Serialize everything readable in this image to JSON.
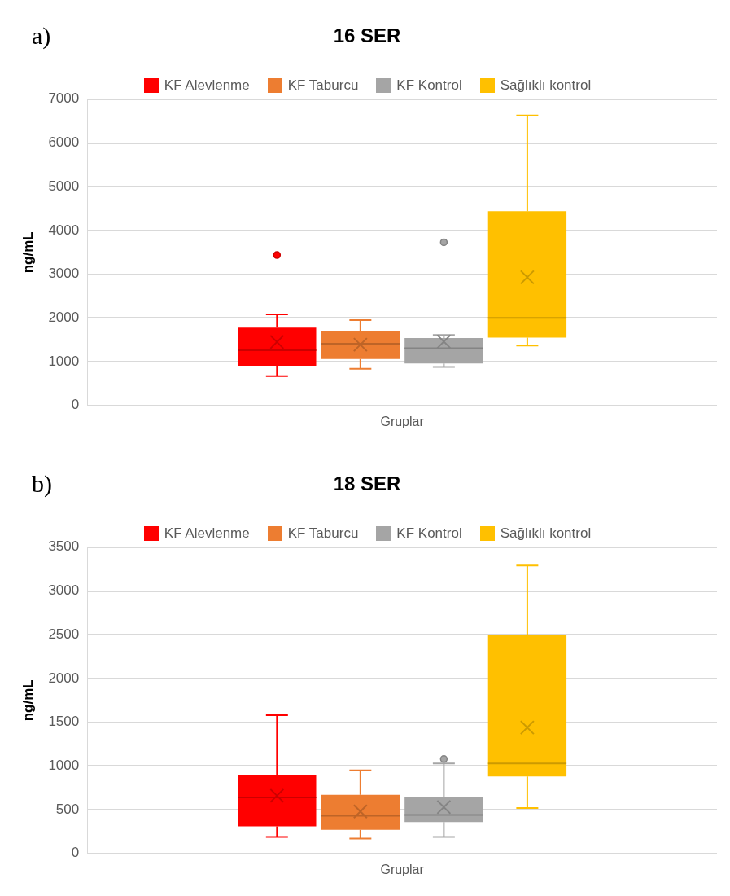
{
  "chart_data": [
    {
      "type": "box",
      "title": "16 SER",
      "annotations": [
        "a)"
      ],
      "ylabel": "ng/mL",
      "categories": [
        "Gruplar"
      ],
      "ylim": [
        0,
        7000
      ],
      "yticks": [
        0,
        1000,
        2000,
        3000,
        4000,
        5000,
        6000,
        7000
      ],
      "grid": "y",
      "legend": "top",
      "series": [
        {
          "name": "KF Alevlenme",
          "color": "#ff0000",
          "boxes": [
            {
              "low": 670,
              "q1": 910,
              "median": 1260,
              "q3": 1780,
              "high": 2080,
              "mean": 1450,
              "outliers": [
                3440
              ]
            }
          ]
        },
        {
          "name": "KF Taburcu",
          "color": "#ed7d31",
          "boxes": [
            {
              "low": 840,
              "q1": 1060,
              "median": 1410,
              "q3": 1710,
              "high": 1950,
              "mean": 1390
            }
          ]
        },
        {
          "name": "KF Kontrol",
          "color": "#a5a5a5",
          "boxes": [
            {
              "low": 880,
              "q1": 960,
              "median": 1310,
              "q3": 1540,
              "high": 1610,
              "mean": 1460,
              "outliers": [
                3730
              ]
            }
          ]
        },
        {
          "name": "Sağlıklı kontrol",
          "color": "#ffc000",
          "boxes": [
            {
              "low": 1370,
              "q1": 1550,
              "median": 2000,
              "q3": 4440,
              "high": 6630,
              "mean": 2930
            }
          ]
        }
      ]
    },
    {
      "type": "box",
      "title": "18 SER",
      "annotations": [
        "b)"
      ],
      "ylabel": "ng/mL",
      "categories": [
        "Gruplar"
      ],
      "ylim": [
        0,
        3500
      ],
      "yticks": [
        0,
        500,
        1000,
        1500,
        2000,
        2500,
        3000,
        3500
      ],
      "grid": "y",
      "legend": "top",
      "series": [
        {
          "name": "KF Alevlenme",
          "color": "#ff0000",
          "boxes": [
            {
              "low": 190,
              "q1": 310,
              "median": 640,
              "q3": 900,
              "high": 1580,
              "mean": 660
            }
          ]
        },
        {
          "name": "KF Taburcu",
          "color": "#ed7d31",
          "boxes": [
            {
              "low": 170,
              "q1": 270,
              "median": 430,
              "q3": 670,
              "high": 950,
              "mean": 480
            }
          ]
        },
        {
          "name": "KF Kontrol",
          "color": "#a5a5a5",
          "boxes": [
            {
              "low": 190,
              "q1": 360,
              "median": 440,
              "q3": 640,
              "high": 1030,
              "mean": 530,
              "outliers": [
                1080
              ]
            }
          ]
        },
        {
          "name": "Sağlıklı kontrol",
          "color": "#ffc000",
          "boxes": [
            {
              "low": 520,
              "q1": 880,
              "median": 1030,
              "q3": 2500,
              "high": 3290,
              "mean": 1440
            }
          ]
        }
      ]
    }
  ]
}
